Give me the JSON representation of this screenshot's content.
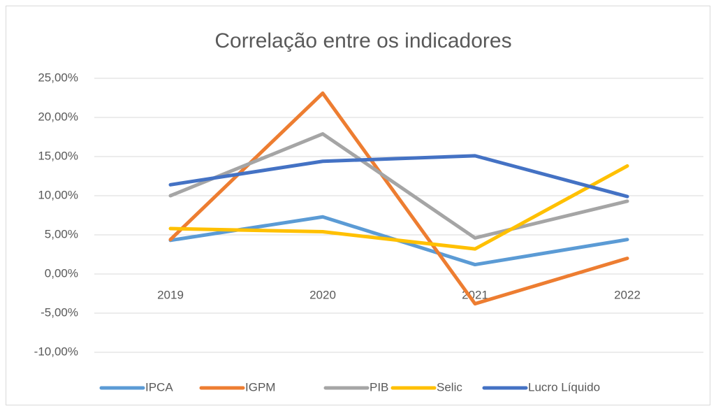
{
  "chart_data": {
    "type": "line",
    "title": "Correlação entre os indicadores",
    "categories": [
      "2019",
      "2020",
      "2021",
      "2022"
    ],
    "series": [
      {
        "name": "IPCA",
        "color": "#5b9bd5",
        "values": [
          4.3,
          7.3,
          1.2,
          4.4
        ]
      },
      {
        "name": "IGPM",
        "color": "#ed7d31",
        "values": [
          4.4,
          23.1,
          -3.8,
          2.0
        ]
      },
      {
        "name": "PIB",
        "color": "#a5a5a5",
        "values": [
          10.0,
          17.9,
          4.6,
          9.3
        ]
      },
      {
        "name": "Selic",
        "color": "#ffc000",
        "values": [
          5.8,
          5.4,
          3.2,
          13.8
        ]
      },
      {
        "name": "Lucro Líquido",
        "color": "#4472c4",
        "values": [
          11.4,
          14.4,
          15.1,
          9.9
        ]
      }
    ],
    "ylim": [
      -10,
      25
    ],
    "yticks": [
      {
        "value": -10,
        "label": "-10,00%"
      },
      {
        "value": -5,
        "label": "-5,00%"
      },
      {
        "value": 0,
        "label": "0,00%"
      },
      {
        "value": 5,
        "label": "5,00%"
      },
      {
        "value": 10,
        "label": "10,00%"
      },
      {
        "value": 15,
        "label": "15,00%"
      },
      {
        "value": 20,
        "label": "20,00%"
      },
      {
        "value": 25,
        "label": "25,00%"
      }
    ],
    "grid": true,
    "legend": "bottom"
  }
}
